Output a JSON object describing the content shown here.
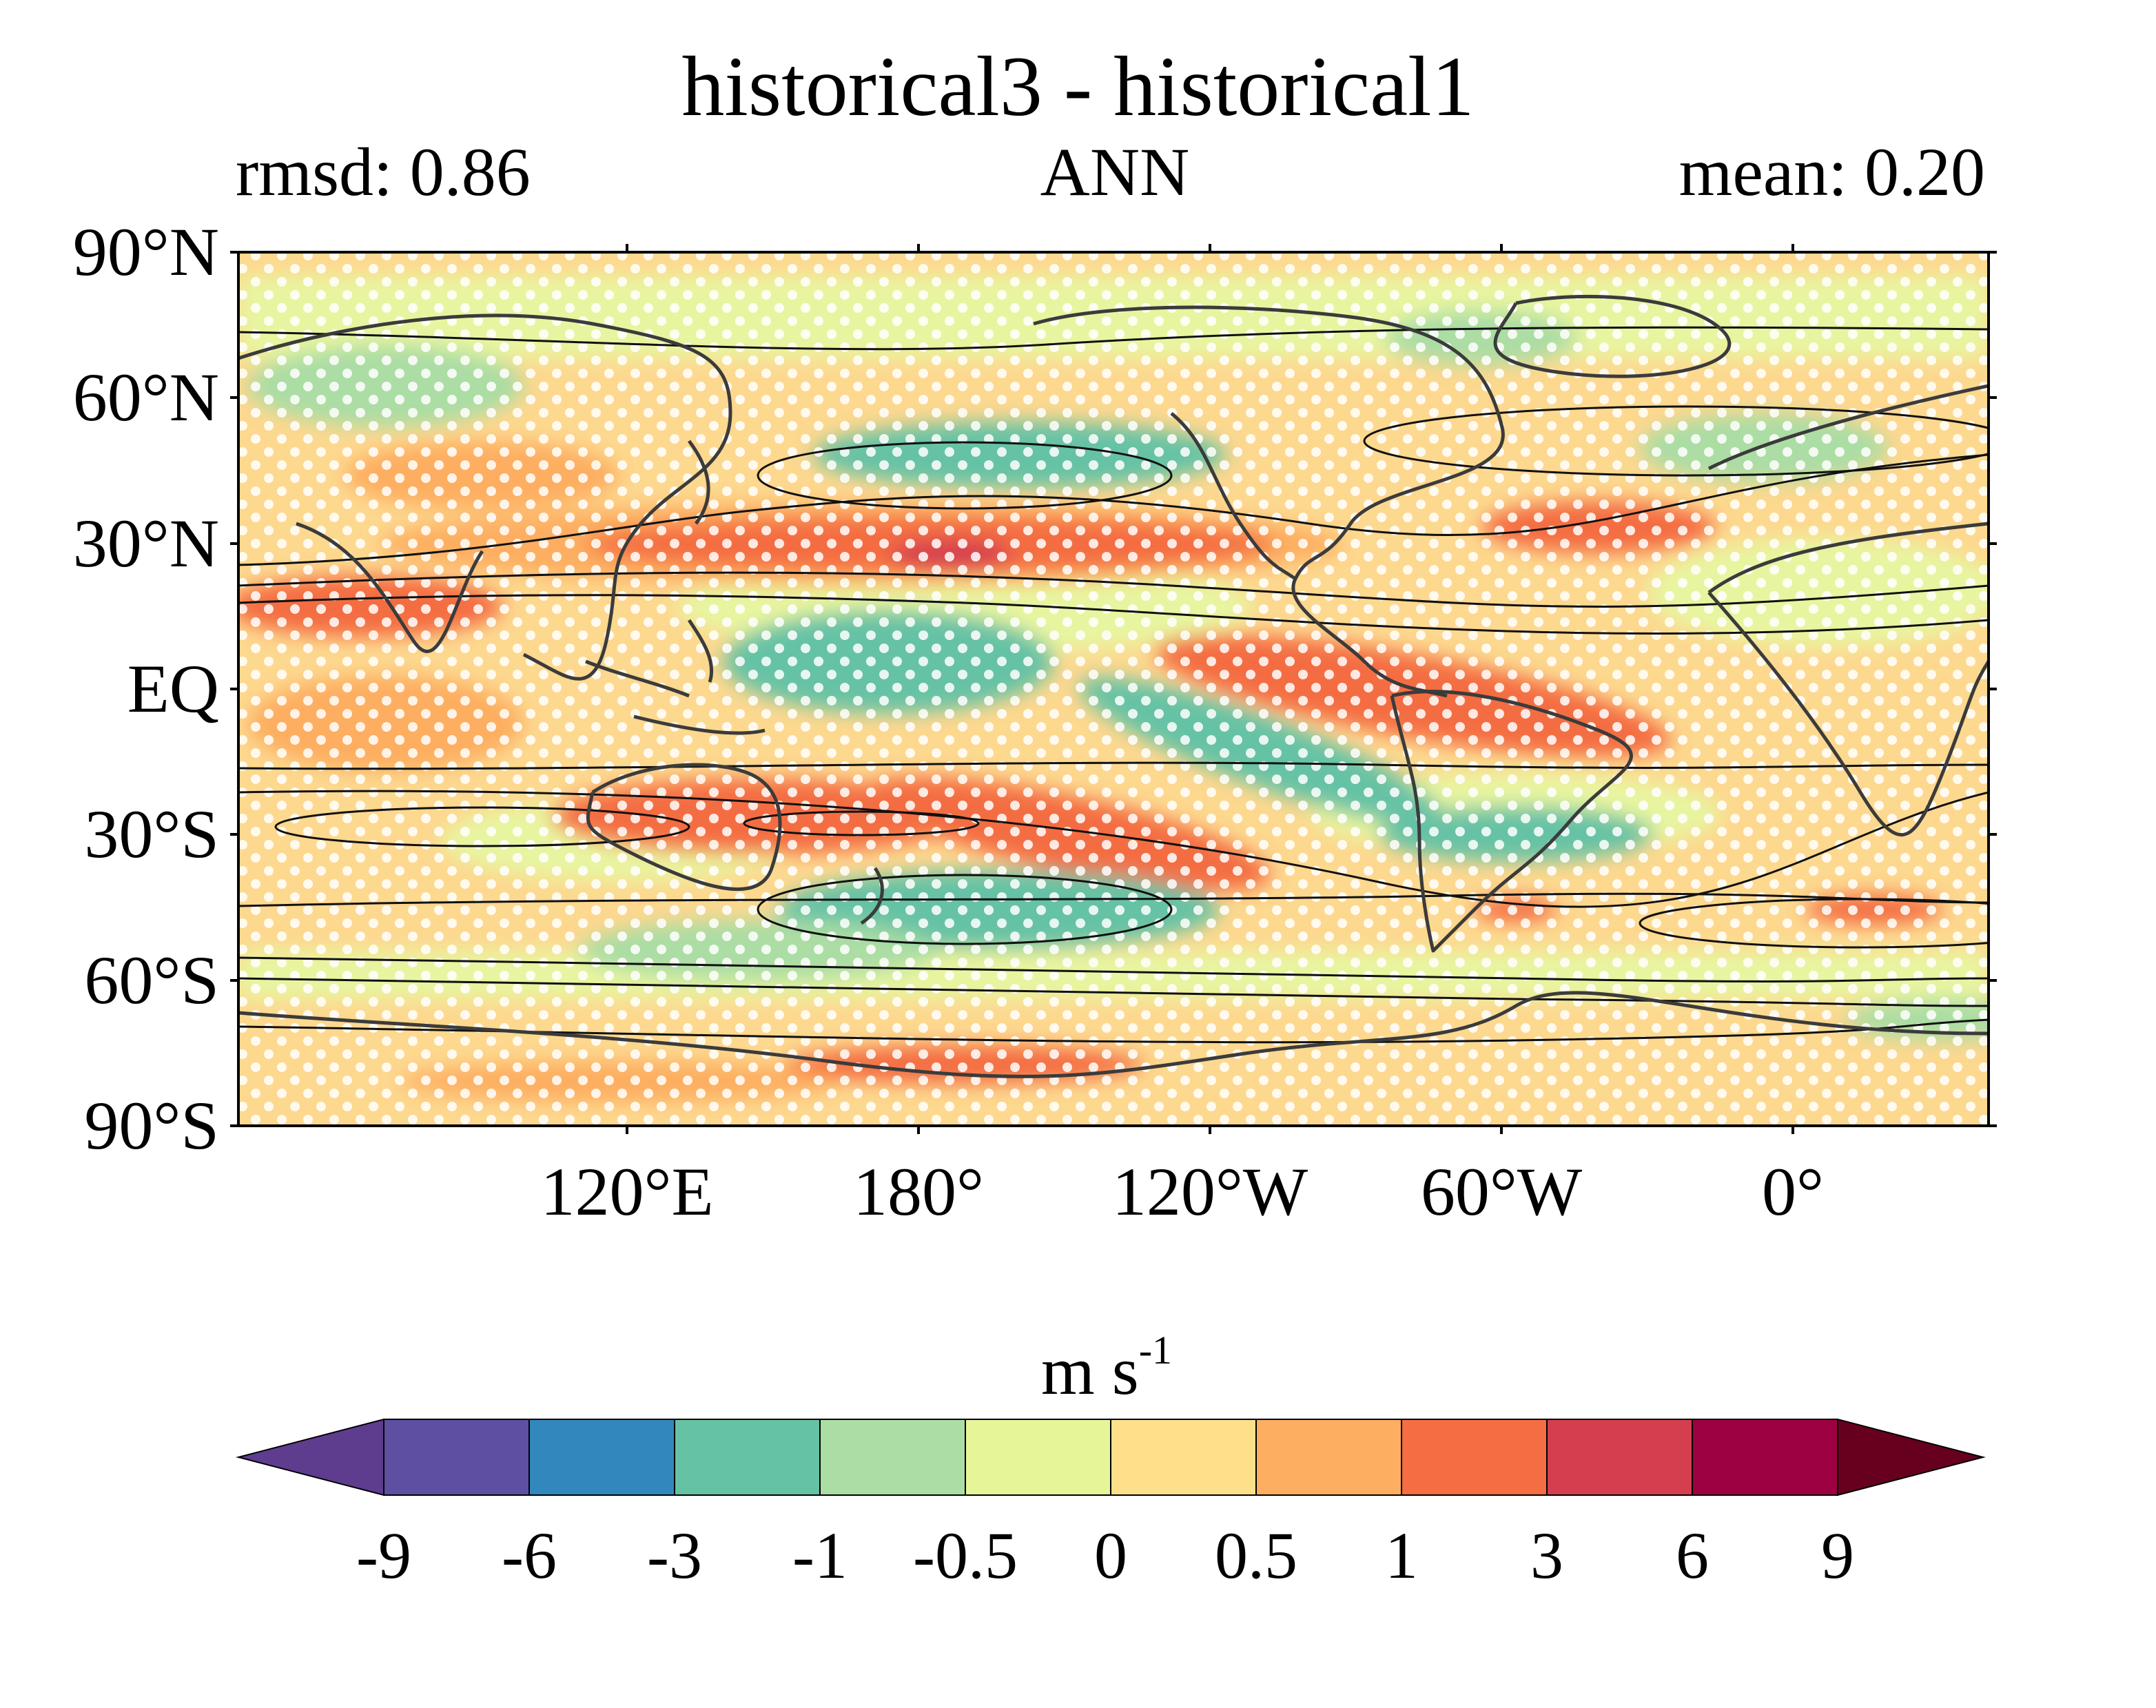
{
  "header": {
    "title": "historical3 - historical1",
    "left_label": "rmsd: 0.86",
    "center_label": "ANN",
    "right_label": "mean: 0.20"
  },
  "map": {
    "projection": "equirectangular",
    "central_longitude": "~ -140 (dateline-centred Pacific view)",
    "lat_ticks": [
      "90°N",
      "60°N",
      "30°N",
      "EQ",
      "30°S",
      "60°S",
      "90°S"
    ],
    "lon_ticks": [
      "120°E",
      "180°",
      "120°W",
      "60°W",
      "0°"
    ],
    "stippling": "white dots",
    "contours": "black climatology lines",
    "coastlines": "dark grey"
  },
  "colorbar": {
    "units_base": "m s",
    "units_exp": "-1",
    "labels": [
      "-9",
      "-6",
      "-3",
      "-1",
      "-0.5",
      "0",
      "0.5",
      "1",
      "3",
      "6",
      "9"
    ],
    "colors": [
      "#5e3c8e",
      "#5e4fa2",
      "#3288bd",
      "#66c2a5",
      "#abdda4",
      "#e6f598",
      "#fee08b",
      "#fdae61",
      "#f46d43",
      "#d53e4f",
      "#9e0142",
      "#67001f"
    ],
    "extend": "both"
  }
}
